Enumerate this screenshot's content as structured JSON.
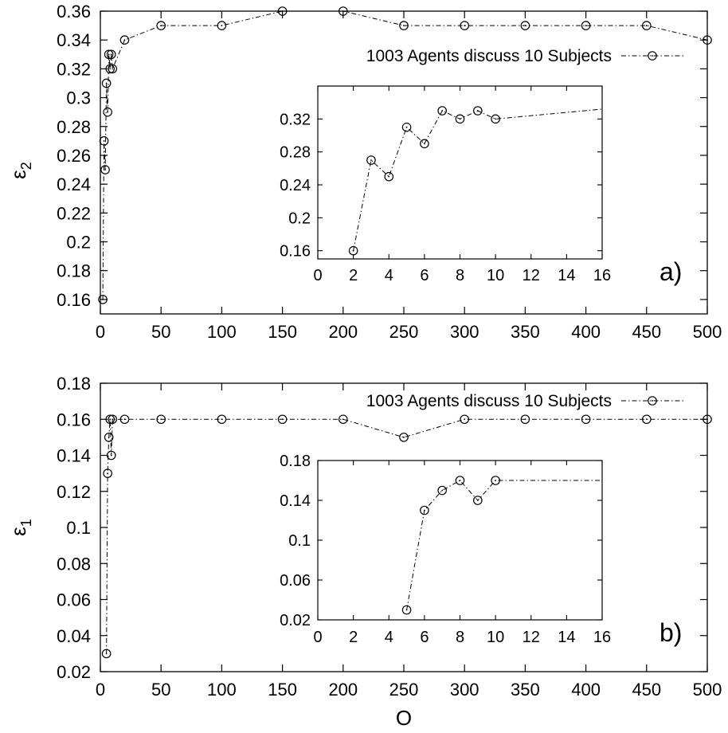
{
  "chart_data": [
    {
      "id": "panel-a",
      "type": "line",
      "panel_label": "a)",
      "ylabel": "ε",
      "ylabel_subscript": "2",
      "xlabel": "",
      "xlim": [
        0,
        500
      ],
      "ylim": [
        0.15,
        0.36
      ],
      "xticks": [
        0,
        50,
        100,
        150,
        200,
        250,
        300,
        350,
        400,
        450,
        500
      ],
      "yticks": [
        0.16,
        0.18,
        0.2,
        0.22,
        0.24,
        0.26,
        0.28,
        0.3,
        0.32,
        0.34,
        0.36
      ],
      "legend_position": "top-right",
      "series": [
        {
          "name": "1003 Agents discuss 10 Subjects",
          "x": [
            2,
            3,
            4,
            5,
            6,
            7,
            8,
            9,
            10,
            20,
            50,
            100,
            150,
            200,
            250,
            300,
            350,
            400,
            450,
            500
          ],
          "y": [
            0.16,
            0.27,
            0.25,
            0.31,
            0.29,
            0.33,
            0.32,
            0.33,
            0.32,
            0.34,
            0.35,
            0.35,
            0.36,
            0.36,
            0.35,
            0.35,
            0.35,
            0.35,
            0.35,
            0.34
          ]
        }
      ],
      "inset": {
        "xlim": [
          0,
          16
        ],
        "ylim": [
          0.15,
          0.36
        ],
        "xticks": [
          0,
          2,
          4,
          6,
          8,
          10,
          12,
          14,
          16
        ],
        "yticks": [
          0.16,
          0.2,
          0.24,
          0.28,
          0.32
        ],
        "x": [
          2,
          3,
          4,
          5,
          6,
          7,
          8,
          9,
          10,
          20
        ],
        "y": [
          0.16,
          0.27,
          0.25,
          0.31,
          0.29,
          0.33,
          0.32,
          0.33,
          0.32,
          0.34
        ]
      }
    },
    {
      "id": "panel-b",
      "type": "line",
      "panel_label": "b)",
      "ylabel": "ε",
      "ylabel_subscript": "1",
      "xlabel": "O",
      "xlim": [
        0,
        500
      ],
      "ylim": [
        0.02,
        0.18
      ],
      "xticks": [
        0,
        50,
        100,
        150,
        200,
        250,
        300,
        350,
        400,
        450,
        500
      ],
      "yticks": [
        0.02,
        0.04,
        0.06,
        0.08,
        0.1,
        0.12,
        0.14,
        0.16,
        0.18
      ],
      "legend_position": "top-right",
      "series": [
        {
          "name": "1003 Agents discuss 10 Subjects",
          "x": [
            5,
            6,
            7,
            8,
            9,
            10,
            20,
            50,
            100,
            150,
            200,
            250,
            300,
            350,
            400,
            450,
            500
          ],
          "y": [
            0.03,
            0.13,
            0.15,
            0.16,
            0.14,
            0.16,
            0.16,
            0.16,
            0.16,
            0.16,
            0.16,
            0.15,
            0.16,
            0.16,
            0.16,
            0.16,
            0.16
          ]
        }
      ],
      "inset": {
        "xlim": [
          0,
          16
        ],
        "ylim": [
          0.02,
          0.18
        ],
        "xticks": [
          0,
          2,
          4,
          6,
          8,
          10,
          12,
          14,
          16
        ],
        "yticks": [
          0.02,
          0.06,
          0.1,
          0.14,
          0.18
        ],
        "x": [
          5,
          6,
          7,
          8,
          9,
          10,
          20
        ],
        "y": [
          0.03,
          0.13,
          0.15,
          0.16,
          0.14,
          0.16,
          0.16
        ]
      }
    }
  ]
}
